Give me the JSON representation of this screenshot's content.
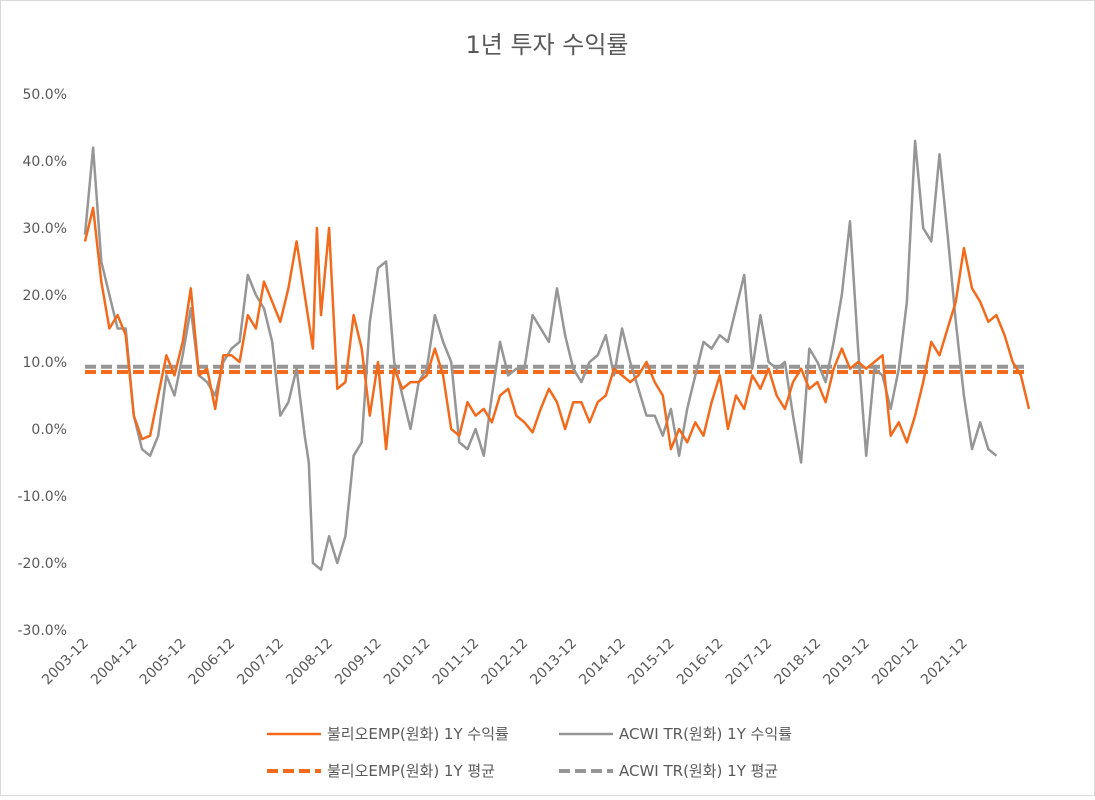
{
  "chart_data": {
    "type": "line",
    "title": "1년 투자 수익률",
    "ylim": [
      -30,
      50
    ],
    "yticks": [
      50,
      40,
      30,
      20,
      10,
      0,
      -10,
      -20,
      -30
    ],
    "ytick_labels": [
      "50.0%",
      "40.0%",
      "30.0%",
      "20.0%",
      "10.0%",
      "0.0%",
      "-10.0%",
      "-20.0%",
      "-30.0%"
    ],
    "xtick_labels": [
      "2003-12",
      "2004-12",
      "2005-12",
      "2006-12",
      "2007-12",
      "2008-12",
      "2009-12",
      "2010-12",
      "2011-12",
      "2012-12",
      "2013-12",
      "2014-12",
      "2015-12",
      "2016-12",
      "2017-12",
      "2018-12",
      "2019-12",
      "2020-12",
      "2021-12"
    ],
    "x_start": "2003-12",
    "x_end": "2022-06",
    "legend_position": "bottom",
    "series": [
      {
        "name": "불리오EMP(원화) 1Y 수익률",
        "color": "#f26b1d",
        "style": "solid",
        "points": [
          [
            0,
            28
          ],
          [
            2,
            33
          ],
          [
            4,
            22
          ],
          [
            6,
            15
          ],
          [
            8,
            17
          ],
          [
            10,
            14
          ],
          [
            12,
            2
          ],
          [
            14,
            -1.5
          ],
          [
            16,
            -1
          ],
          [
            18,
            5
          ],
          [
            20,
            11
          ],
          [
            22,
            8
          ],
          [
            24,
            13
          ],
          [
            26,
            21
          ],
          [
            28,
            8
          ],
          [
            30,
            9
          ],
          [
            32,
            3
          ],
          [
            34,
            11
          ],
          [
            36,
            11
          ],
          [
            38,
            10
          ],
          [
            40,
            17
          ],
          [
            42,
            15
          ],
          [
            44,
            22
          ],
          [
            46,
            19
          ],
          [
            48,
            16
          ],
          [
            50,
            21
          ],
          [
            52,
            28
          ],
          [
            54,
            20
          ],
          [
            56,
            12
          ],
          [
            57,
            30
          ],
          [
            58,
            17
          ],
          [
            60,
            30
          ],
          [
            62,
            6
          ],
          [
            64,
            7
          ],
          [
            66,
            17
          ],
          [
            68,
            12
          ],
          [
            70,
            2
          ],
          [
            72,
            10
          ],
          [
            74,
            -3
          ],
          [
            76,
            9
          ],
          [
            78,
            6
          ],
          [
            80,
            7
          ],
          [
            82,
            7
          ],
          [
            84,
            8
          ],
          [
            86,
            12
          ],
          [
            88,
            8
          ],
          [
            90,
            0
          ],
          [
            92,
            -1
          ],
          [
            94,
            4
          ],
          [
            96,
            2
          ],
          [
            98,
            3
          ],
          [
            100,
            1
          ],
          [
            102,
            5
          ],
          [
            104,
            6
          ],
          [
            106,
            2
          ],
          [
            108,
            1
          ],
          [
            110,
            -0.5
          ],
          [
            112,
            3
          ],
          [
            114,
            6
          ],
          [
            116,
            4
          ],
          [
            118,
            0
          ],
          [
            120,
            4
          ],
          [
            122,
            4
          ],
          [
            124,
            1
          ],
          [
            126,
            4
          ],
          [
            128,
            5
          ],
          [
            130,
            9
          ],
          [
            132,
            8
          ],
          [
            134,
            7
          ],
          [
            136,
            8
          ],
          [
            138,
            10
          ],
          [
            140,
            7
          ],
          [
            142,
            5
          ],
          [
            144,
            -3
          ],
          [
            146,
            0
          ],
          [
            148,
            -2
          ],
          [
            150,
            1
          ],
          [
            152,
            -1
          ],
          [
            154,
            4
          ],
          [
            156,
            8
          ],
          [
            158,
            0
          ],
          [
            160,
            5
          ],
          [
            162,
            3
          ],
          [
            164,
            8
          ],
          [
            166,
            6
          ],
          [
            168,
            9
          ],
          [
            170,
            5
          ],
          [
            172,
            3
          ],
          [
            174,
            7
          ],
          [
            176,
            9
          ],
          [
            178,
            6
          ],
          [
            180,
            7
          ],
          [
            182,
            4
          ],
          [
            184,
            9
          ],
          [
            186,
            12
          ],
          [
            188,
            9
          ],
          [
            190,
            10
          ],
          [
            192,
            9
          ],
          [
            194,
            10
          ],
          [
            196,
            11
          ],
          [
            198,
            -1
          ],
          [
            200,
            1
          ],
          [
            202,
            -2
          ],
          [
            204,
            2
          ],
          [
            206,
            7
          ],
          [
            208,
            13
          ],
          [
            210,
            11
          ],
          [
            212,
            15
          ],
          [
            214,
            19
          ],
          [
            216,
            27
          ],
          [
            218,
            21
          ],
          [
            220,
            19
          ],
          [
            222,
            16
          ],
          [
            224,
            17
          ],
          [
            226,
            14
          ],
          [
            228,
            10
          ],
          [
            230,
            8
          ],
          [
            232,
            3
          ]
        ]
      },
      {
        "name": "ACWI TR(원화) 1Y 수익률",
        "color": "#969696",
        "style": "solid",
        "points": [
          [
            0,
            29
          ],
          [
            2,
            42
          ],
          [
            4,
            25
          ],
          [
            6,
            20
          ],
          [
            8,
            15
          ],
          [
            10,
            15
          ],
          [
            12,
            2
          ],
          [
            14,
            -3
          ],
          [
            16,
            -4
          ],
          [
            18,
            -1
          ],
          [
            20,
            8
          ],
          [
            22,
            5
          ],
          [
            24,
            11
          ],
          [
            26,
            18
          ],
          [
            28,
            8
          ],
          [
            30,
            7
          ],
          [
            32,
            5
          ],
          [
            34,
            10
          ],
          [
            36,
            12
          ],
          [
            38,
            13
          ],
          [
            40,
            23
          ],
          [
            42,
            20
          ],
          [
            44,
            18
          ],
          [
            46,
            13
          ],
          [
            48,
            2
          ],
          [
            50,
            4
          ],
          [
            52,
            9
          ],
          [
            54,
            -1
          ],
          [
            55,
            -5
          ],
          [
            56,
            -20
          ],
          [
            58,
            -21
          ],
          [
            60,
            -16
          ],
          [
            62,
            -20
          ],
          [
            64,
            -16
          ],
          [
            66,
            -4
          ],
          [
            68,
            -2
          ],
          [
            70,
            16
          ],
          [
            72,
            24
          ],
          [
            74,
            25
          ],
          [
            76,
            10
          ],
          [
            78,
            5
          ],
          [
            80,
            0
          ],
          [
            82,
            7
          ],
          [
            84,
            9
          ],
          [
            86,
            17
          ],
          [
            88,
            13
          ],
          [
            90,
            10
          ],
          [
            92,
            -2
          ],
          [
            94,
            -3
          ],
          [
            96,
            0
          ],
          [
            98,
            -4
          ],
          [
            100,
            5
          ],
          [
            102,
            13
          ],
          [
            104,
            8
          ],
          [
            106,
            9
          ],
          [
            108,
            9
          ],
          [
            110,
            17
          ],
          [
            112,
            15
          ],
          [
            114,
            13
          ],
          [
            116,
            21
          ],
          [
            118,
            14
          ],
          [
            120,
            9
          ],
          [
            122,
            7
          ],
          [
            124,
            10
          ],
          [
            126,
            11
          ],
          [
            128,
            14
          ],
          [
            130,
            8
          ],
          [
            132,
            15
          ],
          [
            134,
            10
          ],
          [
            136,
            6
          ],
          [
            138,
            2
          ],
          [
            140,
            2
          ],
          [
            142,
            -1
          ],
          [
            144,
            3
          ],
          [
            146,
            -4
          ],
          [
            148,
            3
          ],
          [
            150,
            8
          ],
          [
            152,
            13
          ],
          [
            154,
            12
          ],
          [
            156,
            14
          ],
          [
            158,
            13
          ],
          [
            160,
            18
          ],
          [
            162,
            23
          ],
          [
            164,
            9
          ],
          [
            166,
            17
          ],
          [
            168,
            10
          ],
          [
            170,
            9
          ],
          [
            172,
            10
          ],
          [
            174,
            2
          ],
          [
            176,
            -5
          ],
          [
            178,
            12
          ],
          [
            180,
            10
          ],
          [
            182,
            7
          ],
          [
            184,
            13
          ],
          [
            186,
            20
          ],
          [
            188,
            31
          ],
          [
            190,
            12
          ],
          [
            192,
            -4
          ],
          [
            194,
            9
          ],
          [
            196,
            8
          ],
          [
            198,
            3
          ],
          [
            200,
            9
          ],
          [
            202,
            19
          ],
          [
            204,
            43
          ],
          [
            206,
            30
          ],
          [
            208,
            28
          ],
          [
            210,
            41
          ],
          [
            212,
            29
          ],
          [
            214,
            16
          ],
          [
            216,
            5
          ],
          [
            218,
            -3
          ],
          [
            220,
            1
          ],
          [
            222,
            -3
          ],
          [
            224,
            -4
          ]
        ]
      },
      {
        "name": "불리오EMP(원화) 1Y 평균",
        "color": "#f26b1d",
        "style": "dashed",
        "value": 8.5
      },
      {
        "name": "ACWI TR(원화) 1Y 평균",
        "color": "#969696",
        "style": "dashed",
        "value": 9.3
      }
    ]
  }
}
